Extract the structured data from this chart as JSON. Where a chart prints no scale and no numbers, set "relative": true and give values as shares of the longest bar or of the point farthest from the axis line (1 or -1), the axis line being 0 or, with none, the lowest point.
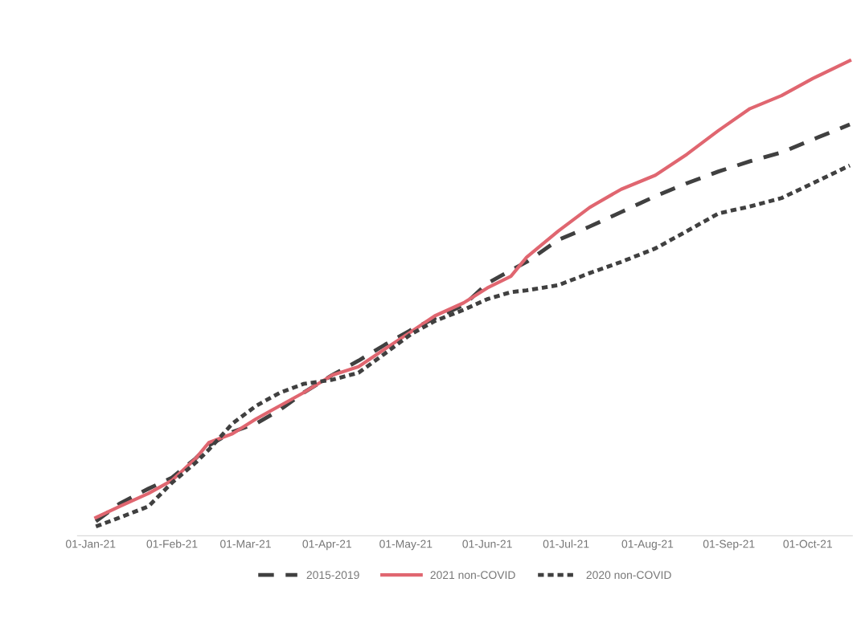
{
  "chart_data": {
    "type": "line",
    "relative": true,
    "x": [
      "2021-01-03",
      "2021-01-12",
      "2021-01-23",
      "2021-02-01",
      "2021-02-10",
      "2021-02-15",
      "2021-02-24",
      "2021-03-05",
      "2021-03-14",
      "2021-03-23",
      "2021-04-03",
      "2021-04-13",
      "2021-04-23",
      "2021-05-03",
      "2021-05-12",
      "2021-05-23",
      "2021-06-01",
      "2021-06-10",
      "2021-06-16",
      "2021-06-28",
      "2021-07-10",
      "2021-07-22",
      "2021-08-04",
      "2021-08-16",
      "2021-08-28",
      "2021-09-09",
      "2021-09-21",
      "2021-10-03",
      "2021-10-17"
    ],
    "xlim": [
      "2020-12-27",
      "2021-10-18"
    ],
    "xticks": [
      {
        "value": "2021-01-01",
        "label": "01-Jan-21"
      },
      {
        "value": "2021-02-01",
        "label": "01-Feb-21"
      },
      {
        "value": "2021-03-01",
        "label": "01-Mar-21"
      },
      {
        "value": "2021-04-01",
        "label": "01-Apr-21"
      },
      {
        "value": "2021-05-01",
        "label": "01-May-21"
      },
      {
        "value": "2021-06-01",
        "label": "01-Jun-21"
      },
      {
        "value": "2021-07-01",
        "label": "01-Jul-21"
      },
      {
        "value": "2021-08-01",
        "label": "01-Aug-21"
      },
      {
        "value": "2021-09-01",
        "label": "01-Sep-21"
      },
      {
        "value": "2021-10-01",
        "label": "01-Oct-21"
      }
    ],
    "series": [
      {
        "name": "2015-2019",
        "color": "#404040",
        "line_style": "dashed",
        "values": [
          0.011,
          0.049,
          0.081,
          0.105,
          0.146,
          0.174,
          0.203,
          0.221,
          0.25,
          0.287,
          0.325,
          0.356,
          0.39,
          0.422,
          0.447,
          0.475,
          0.522,
          0.55,
          0.568,
          0.615,
          0.644,
          0.675,
          0.709,
          0.737,
          0.762,
          0.784,
          0.803,
          0.831,
          0.863
        ]
      },
      {
        "name": "2021 non-COVID",
        "color": "#e06670",
        "line_style": "solid",
        "values": [
          0.019,
          0.043,
          0.071,
          0.099,
          0.146,
          0.18,
          0.199,
          0.231,
          0.259,
          0.287,
          0.325,
          0.343,
          0.381,
          0.418,
          0.452,
          0.48,
          0.512,
          0.537,
          0.578,
          0.634,
          0.685,
          0.724,
          0.754,
          0.799,
          0.85,
          0.897,
          0.925,
          0.962,
          1
        ]
      },
      {
        "name": "2020 non-COVID",
        "color": "#404040",
        "line_style": "dotted",
        "values": [
          0,
          0.019,
          0.043,
          0.094,
          0.137,
          0.165,
          0.221,
          0.259,
          0.287,
          0.306,
          0.315,
          0.33,
          0.371,
          0.413,
          0.441,
          0.465,
          0.488,
          0.503,
          0.507,
          0.518,
          0.544,
          0.568,
          0.597,
          0.634,
          0.672,
          0.687,
          0.705,
          0.737,
          0.775
        ]
      }
    ],
    "legend": "bottom",
    "grid": false
  }
}
